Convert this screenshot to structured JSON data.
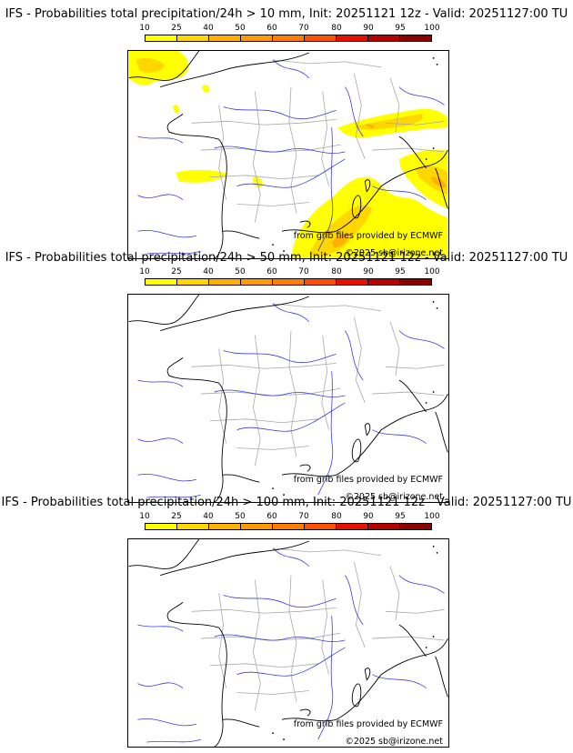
{
  "panels": [
    {
      "title": "IFS - Probabilities total precipitation/24h > 10 mm, Init: 20251121 12z - Valid: 20251127:00 TU",
      "credit_source": "from grib files provided by ECMWF",
      "credit_copyright": "©2025 sb@irizone.net",
      "has_precip": true
    },
    {
      "title": "IFS - Probabilities total precipitation/24h > 50 mm, Init: 20251121 12z - Valid: 20251127:00 TU",
      "credit_source": "from grib files provided by ECMWF",
      "credit_copyright": "©2025 sb@irizone.net",
      "has_precip": false
    },
    {
      "title": "IFS - Probabilities total precipitation/24h > 100 mm, Init: 20251121 12z - Valid: 20251127:00 TU",
      "credit_source": "from grib files provided by ECMWF",
      "credit_copyright": "©2025 sb@irizone.net",
      "has_precip": false
    }
  ],
  "legend": {
    "ticks": [
      "10",
      "25",
      "40",
      "50",
      "60",
      "70",
      "80",
      "90",
      "95",
      "100"
    ],
    "colors": [
      "#ffff00",
      "#ffd700",
      "#ffb000",
      "#ff9a00",
      "#ff7d00",
      "#ff5000",
      "#e81000",
      "#b80000",
      "#8c0000"
    ]
  },
  "map_colors": {
    "coast": "#000000",
    "rivers": "#3b3bdc",
    "borders": "#a8a8a8",
    "precip_light": "#ffff00",
    "precip_mid": "#ffd700",
    "precip_high": "#ffb000",
    "precip_peak": "#ff9a00"
  }
}
